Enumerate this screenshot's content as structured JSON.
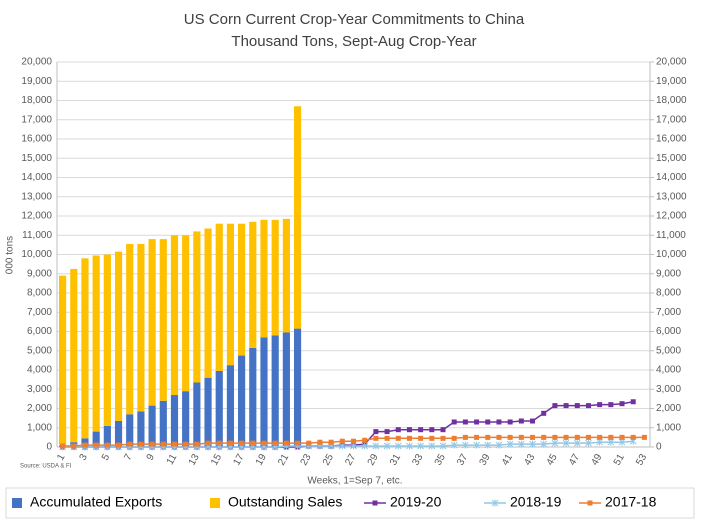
{
  "chart_data": {
    "type": "bar-line",
    "title": "US Corn Current Crop-Year Commitments to China",
    "subtitle": "Thousand Tons, Sept-Aug Crop-Year",
    "y_label": "000 tons",
    "x_label": "Weeks, 1=Sep 7, etc.",
    "source": "Source: USDA & FI",
    "categories": [
      "1",
      null,
      "3",
      null,
      "5",
      null,
      "7",
      null,
      "9",
      null,
      "11",
      null,
      "13",
      null,
      "15",
      null,
      "17",
      null,
      "19",
      null,
      "21",
      null,
      "23",
      null,
      "25",
      null,
      "27",
      null,
      "29",
      null,
      "31",
      null,
      "33",
      null,
      "35",
      null,
      "37",
      null,
      "39",
      null,
      "41",
      null,
      "43",
      null,
      "45",
      null,
      "47",
      null,
      "49",
      null,
      "51",
      null,
      "53"
    ],
    "ylim": [
      0,
      20000
    ],
    "yticks": [
      0,
      {
        "value": 1000,
        "label": "1,000"
      },
      {
        "value": 2000,
        "label": "2,000"
      },
      {
        "value": 3000,
        "label": "3,000"
      },
      {
        "value": 4000,
        "label": "4,000"
      },
      {
        "value": 5000,
        "label": "5,000"
      },
      {
        "value": 6000,
        "label": "6,000"
      },
      {
        "value": 7000,
        "label": "7,000"
      },
      {
        "value": 8000,
        "label": "8,000"
      },
      {
        "value": 9000,
        "label": "9,000"
      },
      {
        "value": 10000,
        "label": "10,000"
      },
      {
        "value": 11000,
        "label": "11,000"
      },
      {
        "value": 12000,
        "label": "12,000"
      },
      {
        "value": 13000,
        "label": "13,000"
      },
      {
        "value": 14000,
        "label": "14,000"
      },
      {
        "value": 15000,
        "label": "15,000"
      },
      {
        "value": 16000,
        "label": "16,000"
      },
      {
        "value": 17000,
        "label": "17,000"
      },
      {
        "value": 18000,
        "label": "18,000"
      },
      {
        "value": 19000,
        "label": "19,000"
      },
      {
        "value": 20000,
        "label": "20,000"
      }
    ],
    "y2lim": [
      0,
      20000
    ],
    "y2ticks": [
      0,
      {
        "value": 1000,
        "label": "1,000"
      },
      {
        "value": 2000,
        "label": "2,000"
      },
      {
        "value": 3000,
        "label": "3,000"
      },
      {
        "value": 4000,
        "label": "4,000"
      },
      {
        "value": 5000,
        "label": "5,000"
      },
      {
        "value": 6000,
        "label": "6,000"
      },
      {
        "value": 7000,
        "label": "7,000"
      },
      {
        "value": 8000,
        "label": "8,000"
      },
      {
        "value": 9000,
        "label": "9,000"
      },
      {
        "value": 10000,
        "label": "10,000"
      },
      {
        "value": 11000,
        "label": "11,000"
      },
      {
        "value": 12000,
        "label": "12,000"
      },
      {
        "value": 13000,
        "label": "13,000"
      },
      {
        "value": 14000,
        "label": "14,000"
      },
      {
        "value": 15000,
        "label": "15,000"
      },
      {
        "value": 16000,
        "label": "16,000"
      },
      {
        "value": 17000,
        "label": "17,000"
      },
      {
        "value": 18000,
        "label": "18,000"
      },
      {
        "value": 19000,
        "label": "19,000"
      },
      {
        "value": 20000,
        "label": "20,000"
      }
    ],
    "grid": true,
    "series": [
      {
        "name": "Accumulated Exports",
        "color": "#4472c4",
        "kind": "bar",
        "values": [
          50,
          250,
          450,
          800,
          1100,
          1350,
          1700,
          1850,
          2150,
          2400,
          2700,
          2900,
          3350,
          3600,
          3950,
          4250,
          4750,
          5150,
          5700,
          5800,
          5950,
          6150,
          null,
          null,
          null,
          null,
          null,
          null,
          null,
          null,
          null,
          null,
          null,
          null,
          null,
          null,
          null,
          null,
          null,
          null,
          null,
          null,
          null,
          null,
          null,
          null,
          null,
          null,
          null,
          null,
          null,
          null,
          null
        ]
      },
      {
        "name": "Outstanding Sales",
        "color": "#ffc000",
        "kind": "bar",
        "values": [
          8850,
          9000,
          9350,
          9150,
          8900,
          8800,
          8850,
          8700,
          8650,
          8400,
          8300,
          8100,
          7850,
          7750,
          7650,
          7350,
          6850,
          6550,
          6100,
          6000,
          5900,
          11550,
          null,
          null,
          null,
          null,
          null,
          null,
          null,
          null,
          null,
          null,
          null,
          null,
          null,
          null,
          null,
          null,
          null,
          null,
          null,
          null,
          null,
          null,
          null,
          null,
          null,
          null,
          null,
          null,
          null,
          null,
          null
        ]
      },
      {
        "name": "2019-20",
        "color": "#7030a0",
        "kind": "line",
        "marker": "square",
        "values": [
          0,
          0,
          0,
          0,
          0,
          0,
          0,
          0,
          0,
          0,
          0,
          0,
          0,
          0,
          0,
          0,
          0,
          0,
          0,
          0,
          0,
          0,
          50,
          50,
          50,
          100,
          100,
          150,
          800,
          800,
          900,
          900,
          900,
          900,
          900,
          1300,
          1300,
          1300,
          1300,
          1300,
          1300,
          1350,
          1350,
          1750,
          2150,
          2150,
          2150,
          2150,
          2200,
          2200,
          2250,
          2350,
          null
        ]
      },
      {
        "name": "2018-19",
        "color": "#8fc8e8",
        "kind": "line",
        "marker": "star",
        "values": [
          0,
          0,
          0,
          0,
          0,
          0,
          0,
          0,
          0,
          0,
          0,
          0,
          0,
          0,
          0,
          0,
          0,
          0,
          0,
          0,
          50,
          50,
          50,
          50,
          50,
          50,
          50,
          50,
          50,
          50,
          50,
          50,
          50,
          50,
          50,
          100,
          100,
          100,
          100,
          100,
          150,
          150,
          150,
          150,
          200,
          200,
          200,
          200,
          250,
          250,
          250,
          300,
          null
        ]
      },
      {
        "name": "2017-18",
        "color": "#ed7d31",
        "kind": "line",
        "marker": "square",
        "values": [
          50,
          50,
          100,
          100,
          100,
          100,
          150,
          150,
          150,
          150,
          150,
          150,
          150,
          200,
          200,
          200,
          200,
          200,
          200,
          200,
          200,
          200,
          200,
          250,
          250,
          300,
          300,
          350,
          450,
          450,
          450,
          450,
          450,
          450,
          450,
          450,
          500,
          500,
          500,
          500,
          500,
          500,
          500,
          500,
          500,
          500,
          500,
          500,
          500,
          500,
          500,
          500,
          500
        ]
      }
    ]
  }
}
